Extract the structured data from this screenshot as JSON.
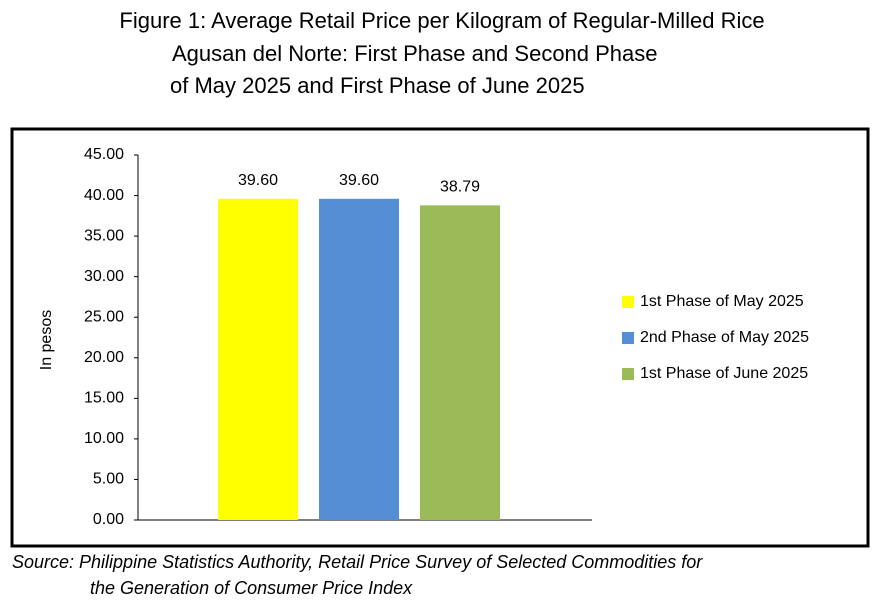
{
  "chart_data": {
    "type": "bar",
    "title": [
      "Figure 1: Average Retail Price per Kilogram of Regular-Milled Rice",
      "Agusan del Norte: First Phase and Second Phase",
      "of May 2025 and First Phase of June 2025"
    ],
    "ylabel": "In pesos",
    "categories": [
      null
    ],
    "series": [
      {
        "name": "1st Phase of May 2025",
        "color": "#ffff00",
        "values": [
          39.6
        ],
        "value_labels": [
          "39.60"
        ]
      },
      {
        "name": "2nd Phase of May 2025",
        "color": "#558ed5",
        "values": [
          39.6
        ],
        "value_labels": [
          "39.60"
        ]
      },
      {
        "name": "1st Phase of June 2025",
        "color": "#9bbb59",
        "values": [
          38.79
        ]
      }
    ],
    "ylim": [
      0,
      45
    ],
    "yticks": [
      {
        "value": 0,
        "label": "0.00"
      },
      {
        "value": 5,
        "label": "5.00"
      },
      {
        "value": 10,
        "label": "10.00"
      },
      {
        "value": 15,
        "label": "15.00"
      },
      {
        "value": 20,
        "label": "20.00"
      },
      {
        "value": 25,
        "label": "25.00"
      },
      {
        "value": 30,
        "label": "30.00"
      },
      {
        "value": 35,
        "label": "35.00"
      },
      {
        "value": 40,
        "label": "40.00"
      },
      {
        "value": 45,
        "label": "45.00"
      }
    ],
    "grid": false,
    "legend": "right",
    "source": [
      "Source: Philippine Statistics Authority, Retail Price Survey of Selected Commodities for",
      "the Generation of Consumer Price Index"
    ]
  }
}
